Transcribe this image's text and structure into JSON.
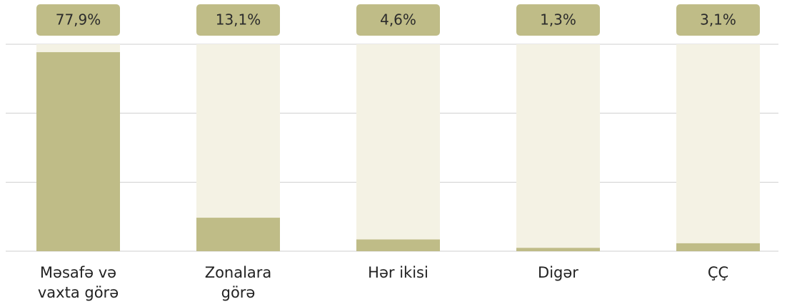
{
  "chart_data": {
    "type": "bar",
    "categories": [
      "Məsafə və vaxta görə",
      "Zonalara görə",
      "Hər ikisi",
      "Digər",
      "ÇÇ"
    ],
    "values": [
      77.9,
      13.1,
      4.6,
      1.3,
      3.1
    ],
    "value_labels": [
      "77,9%",
      "13,1%",
      "4,6%",
      "1,3%",
      "3,1%"
    ],
    "color": "#bfbc87",
    "background_color": "#f4f2e4",
    "ylim": [
      0,
      81
    ],
    "yticks": [
      0,
      27,
      54,
      81
    ],
    "grid": true
  }
}
